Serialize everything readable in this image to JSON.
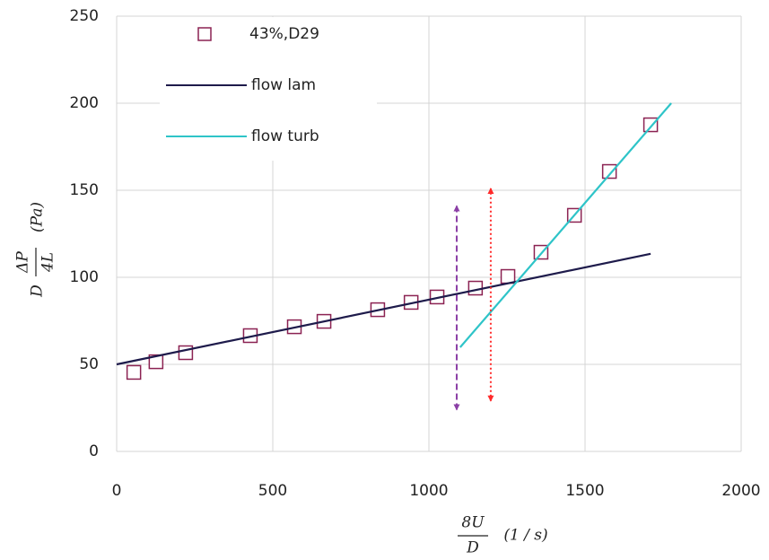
{
  "chart_data": {
    "type": "scatter",
    "x_label": {
      "numerator": "8U",
      "denominator": "D",
      "unit": "(1 / s)"
    },
    "y_label": {
      "prefix": "D",
      "numerator": "ΔP",
      "denominator": "4L",
      "unit": "(Pa)"
    },
    "xlim": [
      0,
      2000
    ],
    "xticks": [
      0,
      500,
      1000,
      1500,
      2000
    ],
    "ylim": [
      0,
      250
    ],
    "yticks": [
      0,
      50,
      100,
      150,
      200,
      250
    ],
    "grid": true,
    "legend": "top-left",
    "series": [
      {
        "name": "43%,D29",
        "kind": "marker",
        "color": "#8b2252",
        "x": [
          55,
          126,
          221,
          428,
          569,
          664,
          836,
          943,
          1026,
          1149,
          1253,
          1359,
          1466,
          1578,
          1710
        ],
        "values": [
          45.4,
          51.5,
          56.7,
          66.5,
          71.6,
          74.7,
          81.4,
          85.6,
          88.7,
          93.8,
          100.5,
          114.4,
          135.6,
          160.8,
          187.6
        ]
      },
      {
        "name": "flow lam",
        "kind": "line",
        "color": "#1e1b4b",
        "x": [
          0,
          1710
        ],
        "values": [
          50,
          113.5
        ]
      },
      {
        "name": "flow turb",
        "kind": "line",
        "color": "#2ec4c8",
        "x": [
          1100,
          1776
        ],
        "values": [
          59.8,
          200
        ]
      }
    ],
    "vertical_arrows": [
      {
        "x": 1089,
        "y": [
          24,
          141
        ],
        "color": "#8b3fa6",
        "dash": "dashed"
      },
      {
        "x": 1198,
        "y": [
          29,
          151
        ],
        "color": "#ff2a2a",
        "dash": "dotted"
      }
    ]
  }
}
